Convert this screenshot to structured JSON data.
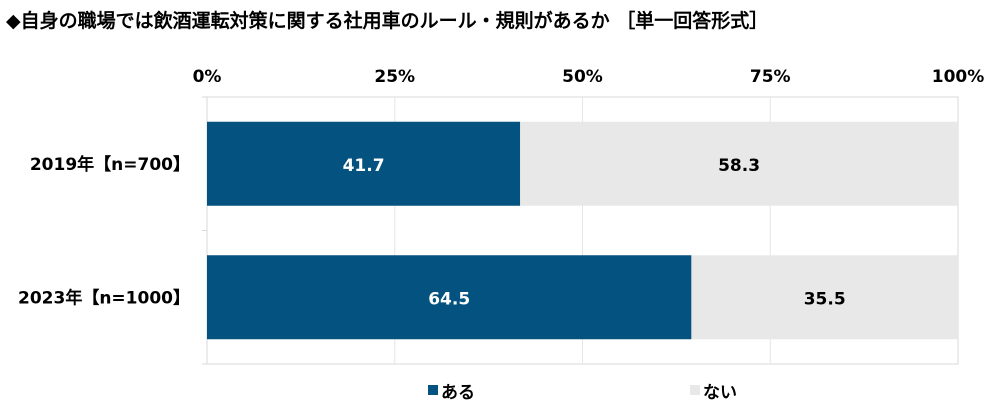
{
  "chart_data": {
    "type": "bar",
    "orientation": "horizontal",
    "stacked": "100%",
    "title": "◆自身の職場では飲酒運転対策に関する社用車のルール・規則があるか ［単一回答形式］",
    "categories": [
      "2019年【n=700】",
      "2023年【n=1000】"
    ],
    "series": [
      {
        "name": "ある",
        "values": [
          41.7,
          64.5
        ],
        "color": "#03527f",
        "label_color": "#ffffff"
      },
      {
        "name": "ない",
        "values": [
          58.3,
          35.5
        ],
        "color": "#e8e8e8",
        "label_color": "#000000"
      }
    ],
    "xlim": [
      0,
      100
    ],
    "x_ticks": [
      0,
      25,
      50,
      75,
      100
    ],
    "x_tick_labels": [
      "0%",
      "25%",
      "50%",
      "75%",
      "100%"
    ],
    "x_axis_position": "top",
    "grid": true,
    "legend_position": "bottom"
  }
}
